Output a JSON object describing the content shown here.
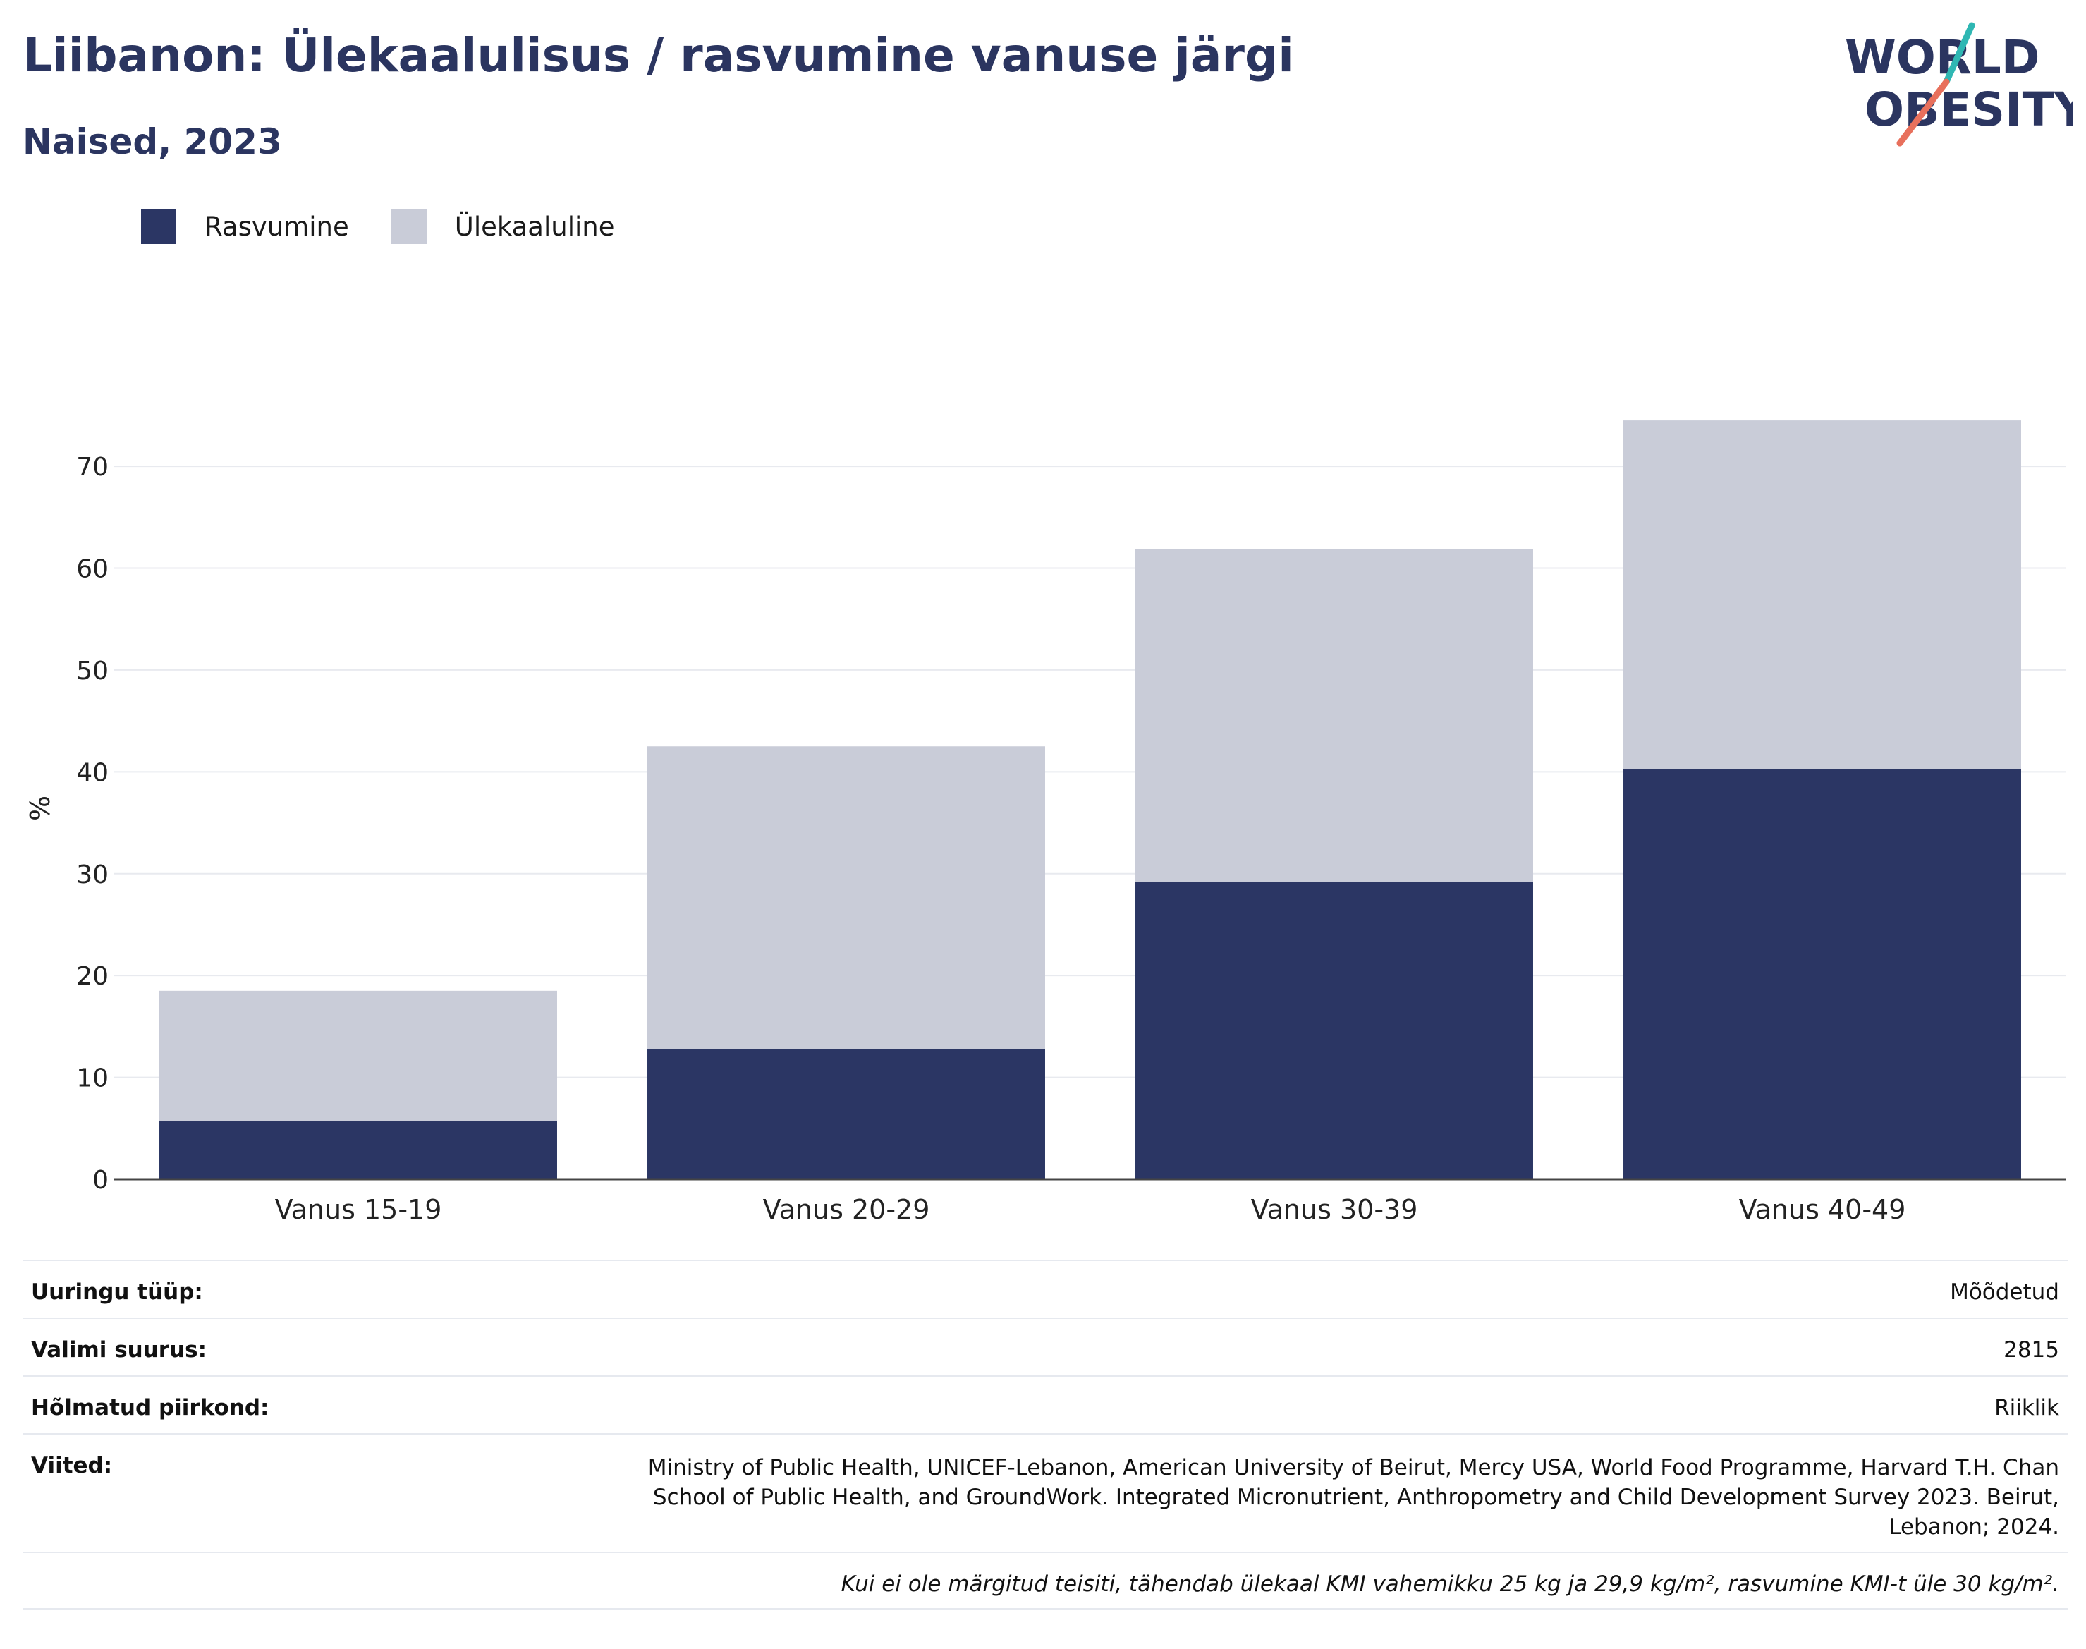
{
  "title": "Liibanon: Ülekaalulisus / rasvumine vanuse järgi",
  "subtitle": "Naised, 2023",
  "logo": {
    "line1": "WORLD",
    "line2": "OBESITY"
  },
  "legend": [
    {
      "label": "Rasvumine",
      "color": "#2b3664"
    },
    {
      "label": "Ülekaaluline",
      "color": "#c9ccd8"
    }
  ],
  "chart_data": {
    "type": "bar",
    "stacked": true,
    "categories": [
      "Vanus 15-19",
      "Vanus 20-29",
      "Vanus 30-39",
      "Vanus 40-49"
    ],
    "series": [
      {
        "name": "Rasvumine",
        "values": [
          5.7,
          12.8,
          29.2,
          40.3
        ],
        "color": "#2b3664"
      },
      {
        "name": "Ülekaaluline",
        "values": [
          12.8,
          29.7,
          32.7,
          34.2
        ],
        "color": "#c9ccd8"
      }
    ],
    "ylabel": "%",
    "ylim": [
      0,
      77
    ],
    "yticks": [
      0,
      10,
      20,
      30,
      40,
      50,
      60,
      70
    ],
    "grid": true,
    "legend_position": "top-left"
  },
  "info": {
    "survey_type_label": "Uuringu tüüp:",
    "survey_type_value": "Mõõdetud",
    "sample_size_label": "Valimi suurus:",
    "sample_size_value": "2815",
    "region_label": "Hõlmatud piirkond:",
    "region_value": "Riiklik",
    "references_label": "Viited:",
    "references_value": "Ministry of Public Health, UNICEF-Lebanon, American University of Beirut, Mercy USA, World Food Programme, Harvard T.H. Chan School of Public Health, and GroundWork. Integrated Micronutrient, Anthropometry and Child Development Survey 2023. Beirut, Lebanon; 2024.",
    "note": "Kui ei ole märgitud teisiti, tähendab ülekaal KMI vahemikku 25 kg ja 29,9 kg/m², rasvumine KMI-t üle 30 kg/m²."
  }
}
